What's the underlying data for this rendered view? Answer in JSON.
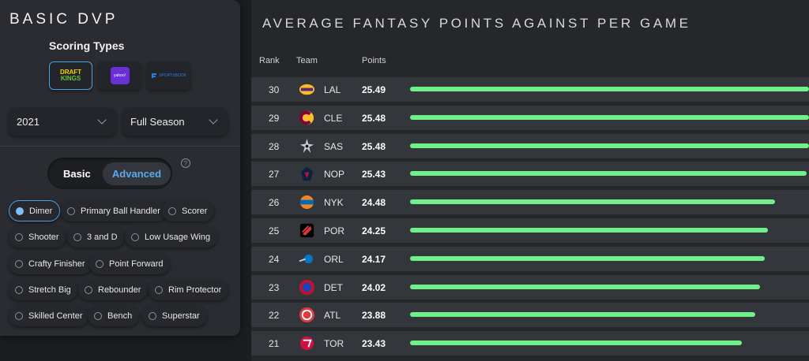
{
  "left": {
    "title": "BASIC DVP",
    "scoring_title": "Scoring Types",
    "scoring_sites": [
      {
        "name": "DraftKings",
        "logo_line1": "DRAFT",
        "logo_line2": "KINGS",
        "active": true
      },
      {
        "name": "Yahoo",
        "logo_text": "yahoo!",
        "active": false
      },
      {
        "name": "FanDuel",
        "logo_text": "SPORTSBOOK",
        "active": false
      }
    ],
    "year_select": "2021",
    "season_select": "Full Season",
    "toggle": {
      "basic": "Basic",
      "advanced": "Advanced",
      "selected": "Advanced"
    },
    "help": "?",
    "archetypes": [
      {
        "label": "Dimer",
        "active": true
      },
      {
        "label": "Primary Ball Handler",
        "active": false
      },
      {
        "label": "Scorer",
        "active": false
      },
      {
        "label": "Shooter",
        "active": false
      },
      {
        "label": "3 and D",
        "active": false
      },
      {
        "label": "Low Usage Wing",
        "active": false
      },
      {
        "label": "Crafty Finisher",
        "active": false
      },
      {
        "label": "Point Forward",
        "active": false
      },
      {
        "label": "Stretch Big",
        "active": false
      },
      {
        "label": "Rebounder",
        "active": false
      },
      {
        "label": "Rim Protector",
        "active": false
      },
      {
        "label": "Skilled Center",
        "active": false
      },
      {
        "label": "Bench",
        "active": false
      },
      {
        "label": "Superstar",
        "active": false
      }
    ]
  },
  "right": {
    "title": "AVERAGE FANTASY POINTS AGAINST PER GAME",
    "headers": {
      "rank": "Rank",
      "team": "Team",
      "points": "Points"
    },
    "bar_color": "#6ff08a",
    "max_points": 25.49,
    "rows": [
      {
        "rank": "30",
        "team": "LAL",
        "points": "25.49",
        "value": 25.49,
        "logo": "lakers-logo-icon",
        "color": "#552583",
        "accent": "#fdb927"
      },
      {
        "rank": "29",
        "team": "CLE",
        "points": "25.48",
        "value": 25.48,
        "logo": "cavaliers-logo-icon",
        "color": "#860038",
        "accent": "#fdbb30"
      },
      {
        "rank": "28",
        "team": "SAS",
        "points": "25.48",
        "value": 25.48,
        "logo": "spurs-logo-icon",
        "color": "#111111",
        "accent": "#c4ced4"
      },
      {
        "rank": "27",
        "team": "NOP",
        "points": "25.43",
        "value": 25.43,
        "logo": "pelicans-logo-icon",
        "color": "#0c2340",
        "accent": "#c8102e"
      },
      {
        "rank": "26",
        "team": "NYK",
        "points": "24.48",
        "value": 24.48,
        "logo": "knicks-logo-icon",
        "color": "#f58426",
        "accent": "#006bb6"
      },
      {
        "rank": "25",
        "team": "POR",
        "points": "24.25",
        "value": 24.25,
        "logo": "blazers-logo-icon",
        "color": "#e03a3e",
        "accent": "#000000"
      },
      {
        "rank": "24",
        "team": "ORL",
        "points": "24.17",
        "value": 24.17,
        "logo": "magic-logo-icon",
        "color": "#0077c0",
        "accent": "#c4ced4"
      },
      {
        "rank": "23",
        "team": "DET",
        "points": "24.02",
        "value": 24.02,
        "logo": "pistons-logo-icon",
        "color": "#c8102e",
        "accent": "#1d42ba"
      },
      {
        "rank": "22",
        "team": "ATL",
        "points": "23.88",
        "value": 23.88,
        "logo": "hawks-logo-icon",
        "color": "#e03a3e",
        "accent": "#ffffff"
      },
      {
        "rank": "21",
        "team": "TOR",
        "points": "23.43",
        "value": 23.43,
        "logo": "raptors-logo-icon",
        "color": "#ce1141",
        "accent": "#ffffff"
      }
    ]
  }
}
